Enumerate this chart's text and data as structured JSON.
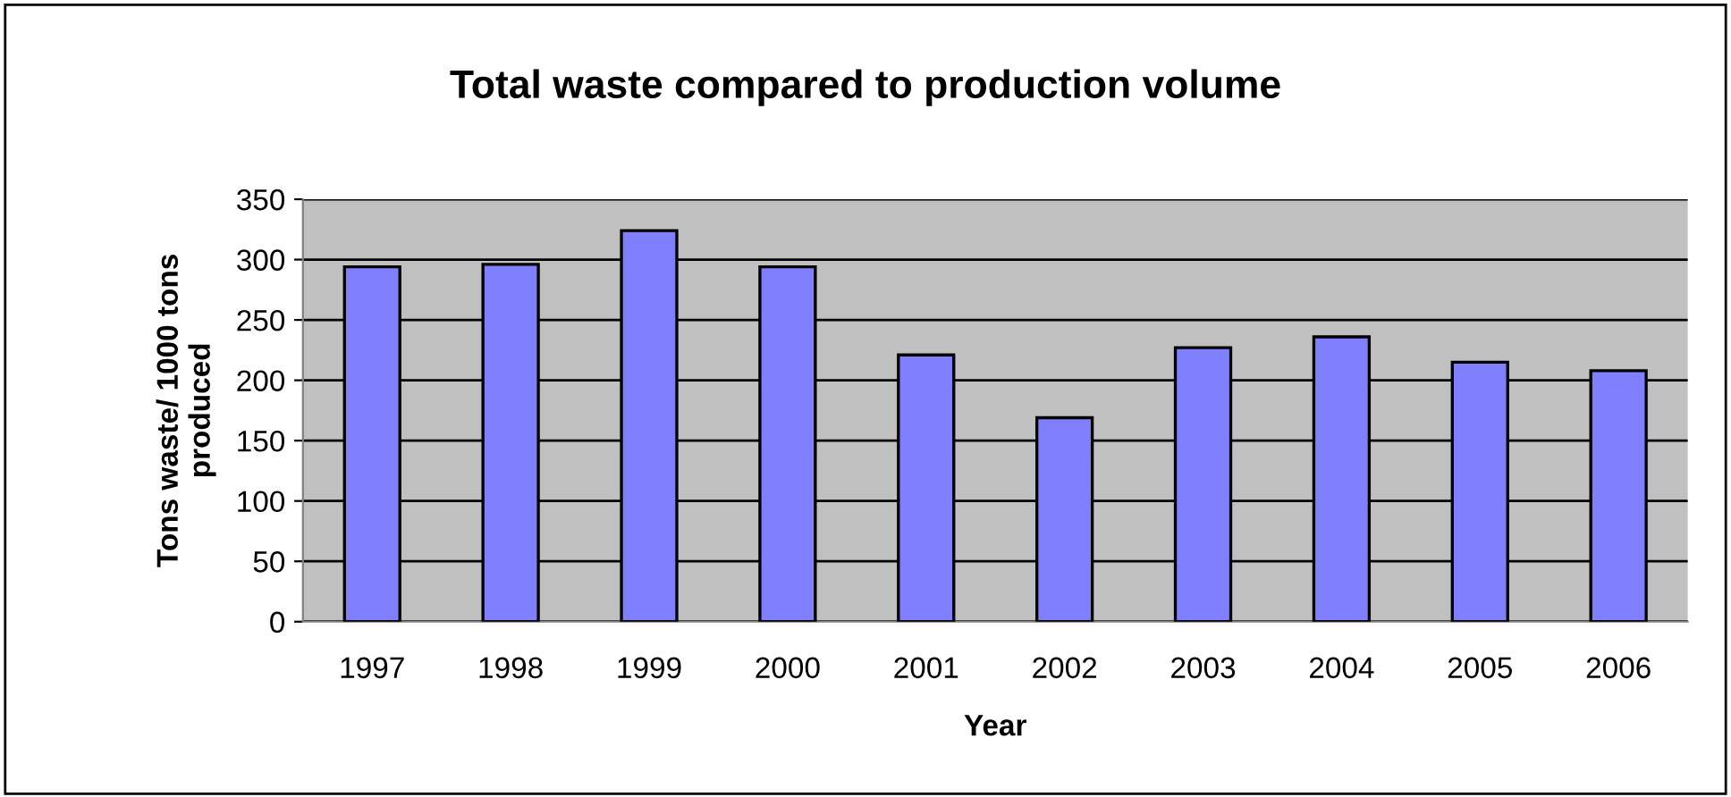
{
  "chart_data": {
    "type": "bar",
    "title": "Total waste compared to production volume",
    "xlabel": "Year",
    "ylabel": "Tons waste/ 1000 tons\nproduced",
    "categories": [
      "1997",
      "1998",
      "1999",
      "2000",
      "2001",
      "2002",
      "2003",
      "2004",
      "2005",
      "2006"
    ],
    "values": [
      294,
      296,
      324,
      294,
      221,
      169,
      227,
      236,
      215,
      208
    ],
    "color": "#8080ff",
    "ylim": [
      0,
      350
    ],
    "yticks": [
      0,
      50,
      100,
      150,
      200,
      250,
      300,
      350
    ],
    "grid": "y"
  }
}
